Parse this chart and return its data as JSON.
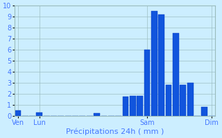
{
  "title": "",
  "xlabel": "Précipitations 24h ( mm )",
  "background_color": "#cceeff",
  "bar_color": "#1155dd",
  "bar_edge_color": "#0033bb",
  "grid_color": "#99bbbb",
  "tick_label_color": "#4477ff",
  "axis_label_color": "#4477ff",
  "ylim": [
    0,
    10
  ],
  "xlim": [
    -0.5,
    27.5
  ],
  "bar_values": [
    0.5,
    0,
    0,
    0.35,
    0,
    0,
    0,
    0,
    0,
    0,
    0,
    0.25,
    0,
    0,
    0,
    1.75,
    1.85,
    1.85,
    6.0,
    9.5,
    9.2,
    2.85,
    7.5,
    2.85,
    3.0,
    0,
    0.85,
    0
  ],
  "day_labels": [
    "Ven",
    "Lun",
    "Sam",
    "Dim"
  ],
  "day_positions": [
    0,
    3,
    18,
    27
  ],
  "n_bars": 28,
  "xlabel_fontsize": 8,
  "tick_fontsize": 7
}
